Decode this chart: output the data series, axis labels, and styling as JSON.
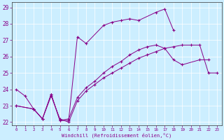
{
  "bg_color": "#cceeff",
  "line_color": "#880088",
  "xlim": [
    -0.5,
    23.5
  ],
  "ylim": [
    21.8,
    29.3
  ],
  "yticks": [
    22,
    23,
    24,
    25,
    26,
    27,
    28,
    29
  ],
  "xticks": [
    0,
    1,
    2,
    3,
    4,
    5,
    6,
    7,
    8,
    9,
    10,
    11,
    12,
    13,
    14,
    15,
    16,
    17,
    18,
    19,
    20,
    21,
    22,
    23
  ],
  "xlabel": "Windchill (Refroidissement éolien,°C)",
  "series1_x": [
    0,
    1,
    2,
    3,
    4,
    5,
    6,
    7,
    8,
    10,
    11,
    12,
    13,
    14,
    16,
    17,
    18
  ],
  "series1_y": [
    24.0,
    23.6,
    22.8,
    22.2,
    23.7,
    22.1,
    22.1,
    27.2,
    26.8,
    27.9,
    28.1,
    28.2,
    28.3,
    28.2,
    28.7,
    28.9,
    27.6
  ],
  "series2_x": [
    0,
    2,
    3,
    4,
    5,
    6,
    7,
    8,
    9,
    10,
    11,
    12,
    13,
    14,
    15,
    16,
    17,
    18,
    19,
    21,
    22
  ],
  "series2_y": [
    23.0,
    22.8,
    22.2,
    23.7,
    22.1,
    22.2,
    23.5,
    24.1,
    24.5,
    25.0,
    25.4,
    25.7,
    26.1,
    26.4,
    26.6,
    26.7,
    26.5,
    25.8,
    25.5,
    25.8,
    25.8
  ],
  "series3_x": [
    0,
    2,
    3,
    4,
    5,
    6,
    7,
    8,
    9,
    10,
    11,
    12,
    13,
    14,
    15,
    16,
    17,
    18,
    19,
    20,
    21,
    22,
    23
  ],
  "series3_y": [
    23.0,
    22.8,
    22.2,
    23.6,
    22.2,
    22.0,
    23.3,
    23.9,
    24.3,
    24.7,
    25.0,
    25.3,
    25.6,
    25.9,
    26.1,
    26.3,
    26.5,
    26.6,
    26.7,
    26.7,
    26.7,
    25.0,
    25.0
  ]
}
